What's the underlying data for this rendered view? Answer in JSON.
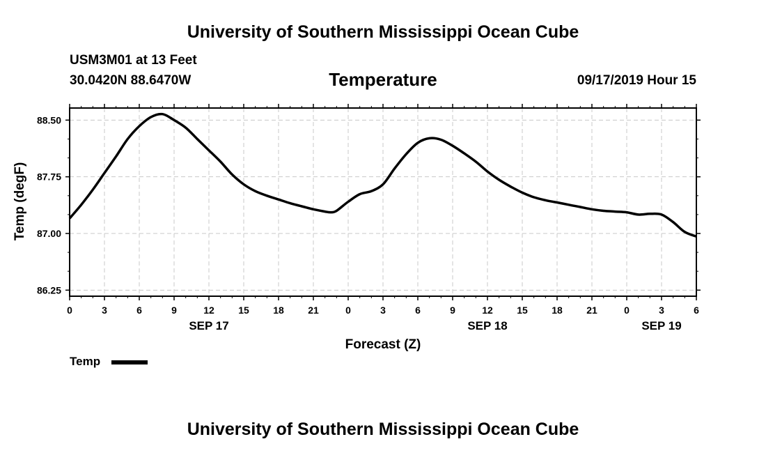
{
  "page_title_top": "University of Southern Mississippi Ocean Cube",
  "page_title_bottom": "University of Southern Mississippi Ocean Cube",
  "station": {
    "name": "USM3M01 at 13 Feet",
    "coords": "30.0420N 88.6470W"
  },
  "issued": "09/17/2019 Hour 15",
  "chart_data": {
    "type": "line",
    "title": "Temperature",
    "xlabel": "Forecast (Z)",
    "ylabel": "Temp (degF)",
    "ylim": [
      86.17,
      88.66
    ],
    "xlim": [
      0,
      54
    ],
    "grid": true,
    "x_tick_positions": [
      0,
      3,
      6,
      9,
      12,
      15,
      18,
      21,
      24,
      27,
      30,
      33,
      36,
      39,
      42,
      45,
      48,
      51,
      54
    ],
    "x_tick_labels": [
      "0",
      "3",
      "6",
      "9",
      "12",
      "15",
      "18",
      "21",
      "0",
      "3",
      "6",
      "9",
      "12",
      "15",
      "18",
      "21",
      "0",
      "3",
      "6"
    ],
    "date_labels": [
      {
        "x": 12,
        "label": "SEP 17"
      },
      {
        "x": 36,
        "label": "SEP 18"
      },
      {
        "x": 51,
        "label": "SEP 19"
      }
    ],
    "y_ticks": [
      86.25,
      87.0,
      87.75,
      88.5
    ],
    "y_tick_labels": [
      "86.25",
      "87.00",
      "87.75",
      "88.50"
    ],
    "legend_position": "bottom-left",
    "series": [
      {
        "name": "Temp",
        "color": "#000000",
        "x": [
          0,
          1,
          2,
          3,
          4,
          5,
          6,
          7,
          8,
          9,
          10,
          11,
          12,
          13,
          14,
          15,
          16,
          17,
          18,
          19,
          20,
          21,
          22,
          22.5,
          23,
          24,
          25,
          26,
          27,
          28,
          29,
          30,
          31,
          32,
          33,
          34,
          35,
          36,
          37,
          38,
          39,
          40,
          41,
          42,
          43,
          44,
          45,
          46,
          47,
          48,
          49,
          50,
          51,
          52,
          53,
          54
        ],
        "values": [
          87.2,
          87.38,
          87.58,
          87.8,
          88.02,
          88.25,
          88.42,
          88.54,
          88.58,
          88.5,
          88.4,
          88.25,
          88.1,
          87.95,
          87.78,
          87.65,
          87.56,
          87.5,
          87.45,
          87.4,
          87.36,
          87.32,
          87.29,
          87.28,
          87.3,
          87.42,
          87.52,
          87.56,
          87.65,
          87.86,
          88.05,
          88.2,
          88.26,
          88.24,
          88.16,
          88.06,
          87.95,
          87.82,
          87.71,
          87.62,
          87.54,
          87.48,
          87.44,
          87.41,
          87.38,
          87.35,
          87.32,
          87.3,
          87.29,
          87.28,
          87.25,
          87.26,
          87.25,
          87.15,
          87.02,
          86.96
        ]
      }
    ]
  },
  "legend": [
    {
      "label": "Temp",
      "color": "#000000"
    }
  ]
}
